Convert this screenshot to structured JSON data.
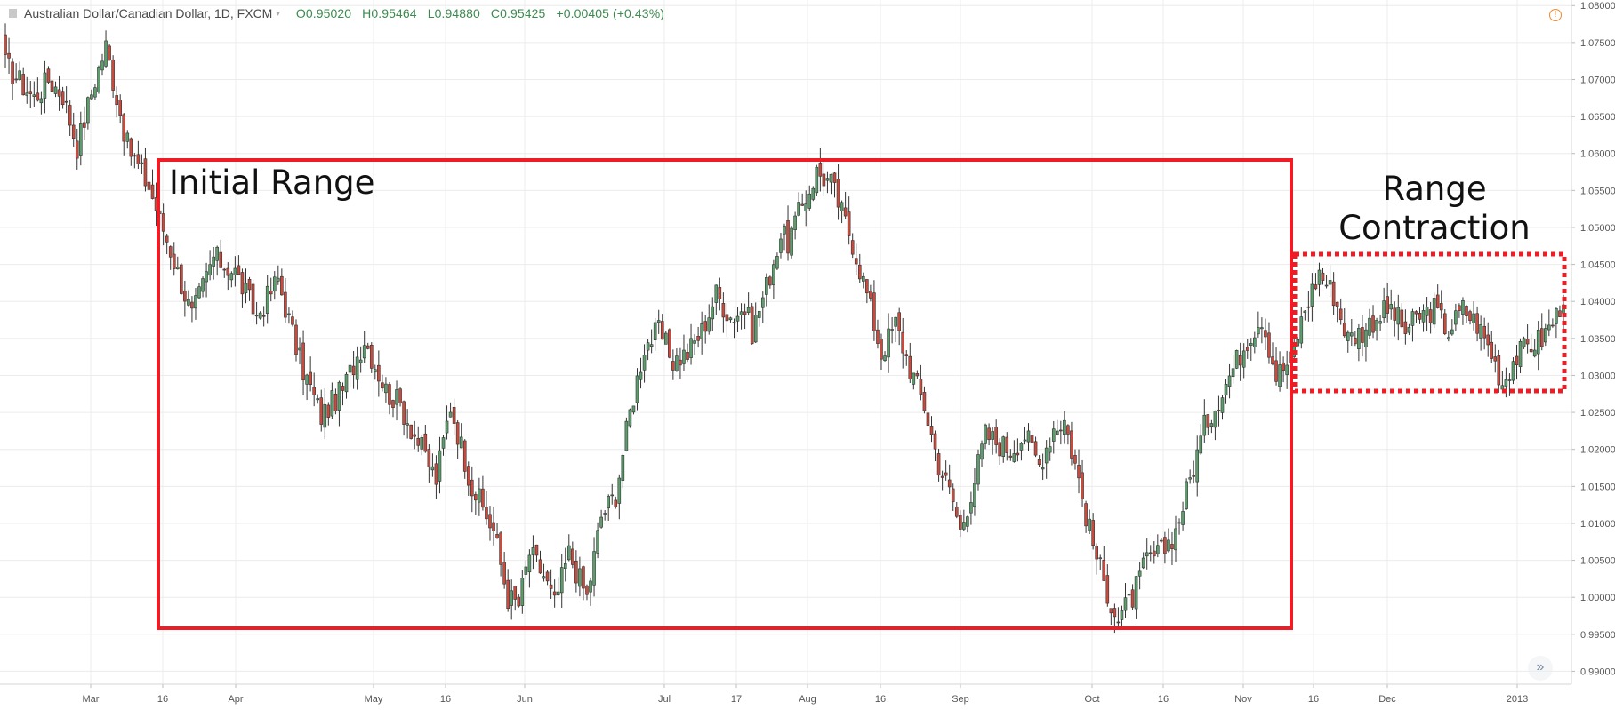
{
  "header": {
    "symbol": "Australian Dollar/Canadian Dollar, 1D, FXCM",
    "open": "O0.95020",
    "high": "H0.95464",
    "low": "L0.94880",
    "close": "C0.95425",
    "change": "+0.00405 (+0.43%)"
  },
  "annotations": {
    "initial_range": "Initial Range",
    "range_contraction_line1": "Range",
    "range_contraction_line2": "Contraction"
  },
  "icons": {
    "alert": "alert-icon",
    "goto_realtime": "double-chevron-right-icon"
  },
  "colors": {
    "up": "#5b9e6c",
    "down": "#c94b3d",
    "box": "#ee1c25",
    "grid": "#ececec"
  },
  "chart_data": {
    "type": "candlestick",
    "title": "Australian Dollar/Canadian Dollar, 1D, FXCM",
    "x_labels": [
      "Mar",
      "16",
      "Apr",
      "May",
      "16",
      "Jun",
      "Jul",
      "17",
      "Aug",
      "16",
      "Sep",
      "Oct",
      "16",
      "Nov",
      "16",
      "Dec",
      "2013"
    ],
    "y_ticks": [
      "0.99000",
      "0.99500",
      "1.00000",
      "1.00500",
      "1.01000",
      "1.01500",
      "1.02000",
      "1.02500",
      "1.03000",
      "1.03500",
      "1.04000",
      "1.04500",
      "1.05000",
      "1.05500",
      "1.06000",
      "1.06500",
      "1.07000",
      "1.07500",
      "1.08000"
    ],
    "ylim": [
      0.98825,
      1.08075
    ],
    "close_path": [
      [
        0,
        1.072
      ],
      [
        8,
        1.0675
      ],
      [
        12,
        1.07
      ],
      [
        16,
        1.068
      ],
      [
        20,
        1.061
      ],
      [
        25,
        1.07
      ],
      [
        28,
        1.0745
      ],
      [
        34,
        1.061
      ],
      [
        40,
        1.0555
      ],
      [
        46,
        1.047
      ],
      [
        52,
        1.038
      ],
      [
        58,
        1.046
      ],
      [
        64,
        1.044
      ],
      [
        70,
        1.038
      ],
      [
        76,
        1.043
      ],
      [
        82,
        1.032
      ],
      [
        88,
        1.0245
      ],
      [
        94,
        1.028
      ],
      [
        100,
        1.035
      ],
      [
        106,
        1.028
      ],
      [
        110,
        1.026
      ],
      [
        115,
        1.021
      ],
      [
        120,
        1.016
      ],
      [
        124,
        1.026
      ],
      [
        130,
        1.015
      ],
      [
        136,
        1.009
      ],
      [
        140,
        1.0
      ],
      [
        143,
        0.999
      ],
      [
        146,
        1.006
      ],
      [
        150,
        1.003
      ],
      [
        153,
        0.999
      ],
      [
        157,
        1.006
      ],
      [
        162,
        1.0
      ],
      [
        166,
        1.011
      ],
      [
        170,
        1.014
      ],
      [
        174,
        1.025
      ],
      [
        178,
        1.034
      ],
      [
        182,
        1.036
      ],
      [
        186,
        1.032
      ],
      [
        190,
        1.033
      ],
      [
        194,
        1.036
      ],
      [
        198,
        1.041
      ],
      [
        202,
        1.038
      ],
      [
        206,
        1.039
      ],
      [
        208,
        1.036
      ],
      [
        212,
        1.042
      ],
      [
        216,
        1.049
      ],
      [
        218,
        1.048
      ],
      [
        222,
        1.053
      ],
      [
        226,
        1.0575
      ],
      [
        230,
        1.056
      ],
      [
        236,
        1.048
      ],
      [
        240,
        1.041
      ],
      [
        244,
        1.033
      ],
      [
        248,
        1.037
      ],
      [
        252,
        1.031
      ],
      [
        256,
        1.026
      ],
      [
        260,
        1.018
      ],
      [
        264,
        1.013
      ],
      [
        266,
        1.009
      ],
      [
        270,
        1.016
      ],
      [
        273,
        1.022
      ],
      [
        276,
        1.021
      ],
      [
        280,
        1.02
      ],
      [
        284,
        1.022
      ],
      [
        288,
        1.018
      ],
      [
        292,
        1.023
      ],
      [
        295,
        1.024
      ],
      [
        298,
        1.018
      ],
      [
        302,
        1.009
      ],
      [
        306,
        1.002
      ],
      [
        310,
        0.997
      ],
      [
        314,
        1.0
      ],
      [
        318,
        1.005
      ],
      [
        322,
        1.006
      ],
      [
        326,
        1.009
      ],
      [
        330,
        1.016
      ],
      [
        334,
        1.023
      ],
      [
        338,
        1.027
      ],
      [
        342,
        1.031
      ],
      [
        346,
        1.035
      ],
      [
        350,
        1.038
      ],
      [
        354,
        1.03
      ],
      [
        358,
        1.032
      ],
      [
        362,
        1.039
      ],
      [
        366,
        1.044
      ],
      [
        370,
        1.041
      ],
      [
        374,
        1.035
      ],
      [
        378,
        1.036
      ],
      [
        382,
        1.038
      ],
      [
        386,
        1.039
      ],
      [
        390,
        1.036
      ],
      [
        394,
        1.038
      ],
      [
        398,
        1.039
      ],
      [
        402,
        1.036
      ],
      [
        406,
        1.039
      ],
      [
        410,
        1.037
      ],
      [
        414,
        1.033
      ],
      [
        417,
        1.029
      ],
      [
        420,
        1.032
      ],
      [
        424,
        1.034
      ],
      [
        428,
        1.035
      ],
      [
        432,
        1.038
      ],
      [
        434,
        1.041
      ]
    ]
  }
}
